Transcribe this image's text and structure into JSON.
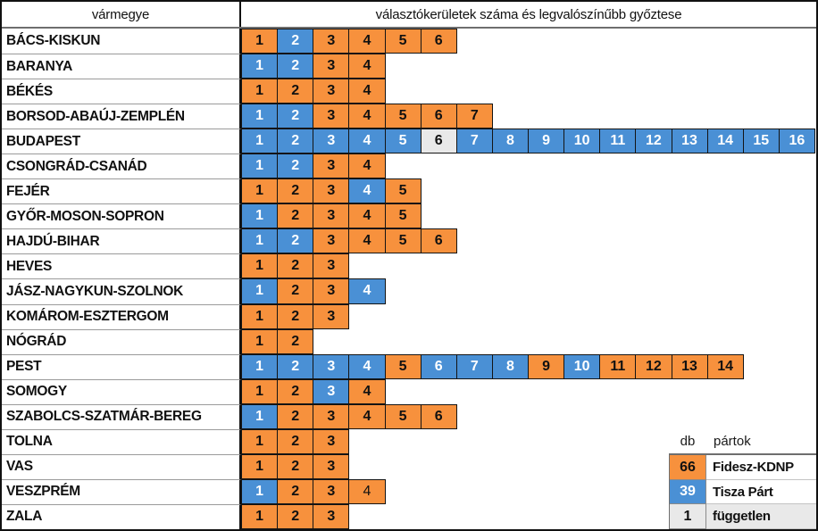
{
  "header": {
    "county_col": "vármegye",
    "districts_col": "választókerületek száma és legvalószínűbb győztese"
  },
  "colors": {
    "party": {
      "fidesz-kdnp": "#F7913D",
      "tisza-part": "#4A90D5",
      "fuggetlen": "#E9E9E9"
    },
    "number_on_blue": "#FFFFFF",
    "number_dark": "#111111"
  },
  "rows": [
    {
      "county": "BÁCS-KISKUN",
      "winners": [
        "fidesz-kdnp",
        "tisza-part",
        "fidesz-kdnp",
        "fidesz-kdnp",
        "fidesz-kdnp",
        "fidesz-kdnp"
      ]
    },
    {
      "county": "BARANYA",
      "winners": [
        "tisza-part",
        "tisza-part",
        "fidesz-kdnp",
        "fidesz-kdnp"
      ]
    },
    {
      "county": "BÉKÉS",
      "winners": [
        "fidesz-kdnp",
        "fidesz-kdnp",
        "fidesz-kdnp",
        "fidesz-kdnp"
      ]
    },
    {
      "county": "BORSOD-ABAÚJ-ZEMPLÉN",
      "winners": [
        "tisza-part",
        "tisza-part",
        "fidesz-kdnp",
        "fidesz-kdnp",
        "fidesz-kdnp",
        "fidesz-kdnp",
        "fidesz-kdnp"
      ]
    },
    {
      "county": "BUDAPEST",
      "winners": [
        "tisza-part",
        "tisza-part",
        "tisza-part",
        "tisza-part",
        "tisza-part",
        "fuggetlen",
        "tisza-part",
        "tisza-part",
        "tisza-part",
        "tisza-part",
        "tisza-part",
        "tisza-part",
        "tisza-part",
        "tisza-part",
        "tisza-part",
        "tisza-part"
      ]
    },
    {
      "county": "CSONGRÁD-CSANÁD",
      "winners": [
        "tisza-part",
        "tisza-part",
        "fidesz-kdnp",
        "fidesz-kdnp"
      ]
    },
    {
      "county": "FEJÉR",
      "winners": [
        "fidesz-kdnp",
        "fidesz-kdnp",
        "fidesz-kdnp",
        "tisza-part",
        "fidesz-kdnp"
      ]
    },
    {
      "county": "GYŐR-MOSON-SOPRON",
      "winners": [
        "tisza-part",
        "fidesz-kdnp",
        "fidesz-kdnp",
        "fidesz-kdnp",
        "fidesz-kdnp"
      ]
    },
    {
      "county": "HAJDÚ-BIHAR",
      "winners": [
        "tisza-part",
        "tisza-part",
        "fidesz-kdnp",
        "fidesz-kdnp",
        "fidesz-kdnp",
        "fidesz-kdnp"
      ]
    },
    {
      "county": "HEVES",
      "winners": [
        "fidesz-kdnp",
        "fidesz-kdnp",
        "fidesz-kdnp"
      ]
    },
    {
      "county": "JÁSZ-NAGYKUN-SZOLNOK",
      "winners": [
        "tisza-part",
        "fidesz-kdnp",
        "fidesz-kdnp",
        "tisza-part"
      ]
    },
    {
      "county": "KOMÁROM-ESZTERGOM",
      "winners": [
        "fidesz-kdnp",
        "fidesz-kdnp",
        "fidesz-kdnp"
      ]
    },
    {
      "county": "NÓGRÁD",
      "winners": [
        "fidesz-kdnp",
        "fidesz-kdnp"
      ]
    },
    {
      "county": "PEST",
      "winners": [
        "tisza-part",
        "tisza-part",
        "tisza-part",
        "tisza-part",
        "fidesz-kdnp",
        "tisza-part",
        "tisza-part",
        "tisza-part",
        "fidesz-kdnp",
        "tisza-part",
        "fidesz-kdnp",
        "fidesz-kdnp",
        "fidesz-kdnp",
        "fidesz-kdnp"
      ]
    },
    {
      "county": "SOMOGY",
      "winners": [
        "fidesz-kdnp",
        "fidesz-kdnp",
        "tisza-part",
        "fidesz-kdnp"
      ]
    },
    {
      "county": "SZABOLCS-SZATMÁR-BEREG",
      "winners": [
        "tisza-part",
        "fidesz-kdnp",
        "fidesz-kdnp",
        "fidesz-kdnp",
        "fidesz-kdnp",
        "fidesz-kdnp"
      ]
    },
    {
      "county": "TOLNA",
      "winners": [
        "fidesz-kdnp",
        "fidesz-kdnp",
        "fidesz-kdnp"
      ]
    },
    {
      "county": "VAS",
      "winners": [
        "fidesz-kdnp",
        "fidesz-kdnp",
        "fidesz-kdnp"
      ]
    },
    {
      "county": "VESZPRÉM",
      "winners": [
        "tisza-part",
        "fidesz-kdnp",
        "fidesz-kdnp",
        "fidesz-kdnp"
      ],
      "light_weight_districts": [
        4
      ]
    },
    {
      "county": "ZALA",
      "winners": [
        "fidesz-kdnp",
        "fidesz-kdnp",
        "fidesz-kdnp"
      ]
    }
  ],
  "legend": {
    "db_header": "db",
    "partok_header": "pártok",
    "entries": [
      {
        "count": "66",
        "party": "Fidesz-KDNP",
        "key": "fidesz-kdnp"
      },
      {
        "count": "39",
        "party": "Tisza Párt",
        "key": "tisza-part"
      },
      {
        "count": "1",
        "party": "független",
        "key": "fuggetlen"
      }
    ]
  },
  "chart_data": {
    "type": "table",
    "title": "választókerületek száma és legvalószínűbb győztese",
    "columns": [
      "vármegye",
      "választókerületek (1..n) legvalószínűbb győztese"
    ],
    "legend": [
      {
        "party": "Fidesz-KDNP",
        "districts_won": 66,
        "color": "#F7913D"
      },
      {
        "party": "Tisza Párt",
        "districts_won": 39,
        "color": "#4A90D5"
      },
      {
        "party": "független",
        "districts_won": 1,
        "color": "#E9E9E9"
      }
    ],
    "district_counts": {
      "BÁCS-KISKUN": 6,
      "BARANYA": 4,
      "BÉKÉS": 4,
      "BORSOD-ABAÚJ-ZEMPLÉN": 7,
      "BUDAPEST": 16,
      "CSONGRÁD-CSANÁD": 4,
      "FEJÉR": 5,
      "GYŐR-MOSON-SOPRON": 5,
      "HAJDÚ-BIHAR": 6,
      "HEVES": 3,
      "JÁSZ-NAGYKUN-SZOLNOK": 4,
      "KOMÁROM-ESZTERGOM": 3,
      "NÓGRÁD": 2,
      "PEST": 14,
      "SOMOGY": 4,
      "SZABOLCS-SZATMÁR-BEREG": 6,
      "TOLNA": 3,
      "VAS": 3,
      "VESZPRÉM": 4,
      "ZALA": 3
    }
  }
}
